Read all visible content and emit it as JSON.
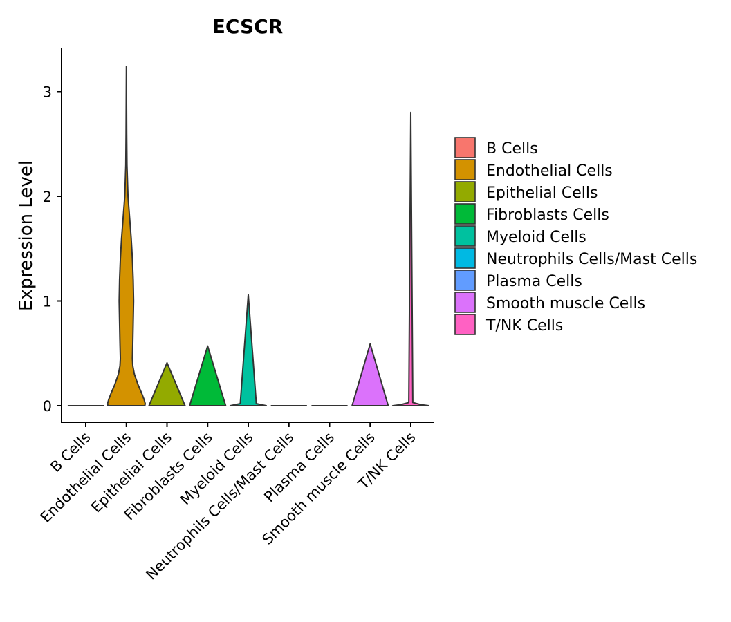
{
  "chart_data": {
    "type": "violin",
    "title": "ECSCR",
    "xlabel": "",
    "ylabel": "Expression Level",
    "ylim": [
      -0.15,
      3.42
    ],
    "yticks": [
      0,
      1,
      2,
      3
    ],
    "ytick_labels": [
      "0",
      "1",
      "2",
      "3"
    ],
    "grid": false,
    "legend_position": "right",
    "categories": [
      "B Cells",
      "Endothelial Cells",
      "Epithelial Cells",
      "Fibroblasts Cells",
      "Myeloid Cells",
      "Neutrophils Cells/Mast Cells",
      "Plasma Cells",
      "Smooth muscle Cells",
      "T/NK Cells"
    ],
    "colors": [
      "#F8766D",
      "#D39200",
      "#93AA00",
      "#00BA38",
      "#00C19F",
      "#00B9E3",
      "#619CFF",
      "#DB72FB",
      "#FF61C3"
    ],
    "max_values": [
      0.0,
      3.24,
      0.41,
      0.57,
      1.06,
      0.0,
      0.0,
      0.59,
      2.8
    ],
    "violins": [
      {
        "name": "B Cells",
        "density": [
          [
            0,
            0.45
          ]
        ]
      },
      {
        "name": "Endothelial Cells",
        "density": [
          [
            0,
            0.46
          ],
          [
            0.02,
            0.47
          ],
          [
            0.06,
            0.44
          ],
          [
            0.12,
            0.38
          ],
          [
            0.2,
            0.29
          ],
          [
            0.3,
            0.2
          ],
          [
            0.38,
            0.16
          ],
          [
            0.45,
            0.15
          ],
          [
            0.6,
            0.16
          ],
          [
            0.8,
            0.17
          ],
          [
            1.0,
            0.18
          ],
          [
            1.2,
            0.17
          ],
          [
            1.4,
            0.15
          ],
          [
            1.6,
            0.12
          ],
          [
            1.8,
            0.08
          ],
          [
            2.0,
            0.04
          ],
          [
            2.3,
            0.015
          ],
          [
            2.6,
            0.008
          ],
          [
            3.24,
            0.0
          ]
        ]
      },
      {
        "name": "Epithelial Cells",
        "density": [
          [
            0,
            0.45
          ],
          [
            0.41,
            0.0
          ]
        ]
      },
      {
        "name": "Fibroblasts Cells",
        "density": [
          [
            0,
            0.45
          ],
          [
            0.57,
            0.0
          ]
        ]
      },
      {
        "name": "Myeloid Cells",
        "density": [
          [
            0,
            0.45
          ],
          [
            0.02,
            0.2
          ],
          [
            1.06,
            0.0
          ]
        ]
      },
      {
        "name": "Neutrophils Cells/Mast Cells",
        "density": [
          [
            0,
            0.45
          ]
        ]
      },
      {
        "name": "Plasma Cells",
        "density": [
          [
            0,
            0.45
          ]
        ]
      },
      {
        "name": "Smooth muscle Cells",
        "density": [
          [
            0,
            0.45
          ],
          [
            0.59,
            0.0
          ]
        ]
      },
      {
        "name": "T/NK Cells",
        "density": [
          [
            0,
            0.45
          ],
          [
            0.01,
            0.25
          ],
          [
            0.03,
            0.05
          ],
          [
            2.8,
            0.0
          ]
        ]
      }
    ],
    "legend": {
      "items": [
        "B Cells",
        "Endothelial Cells",
        "Epithelial Cells",
        "Fibroblasts Cells",
        "Myeloid Cells",
        "Neutrophils Cells/Mast Cells",
        "Plasma Cells",
        "Smooth muscle Cells",
        "T/NK Cells"
      ]
    }
  }
}
